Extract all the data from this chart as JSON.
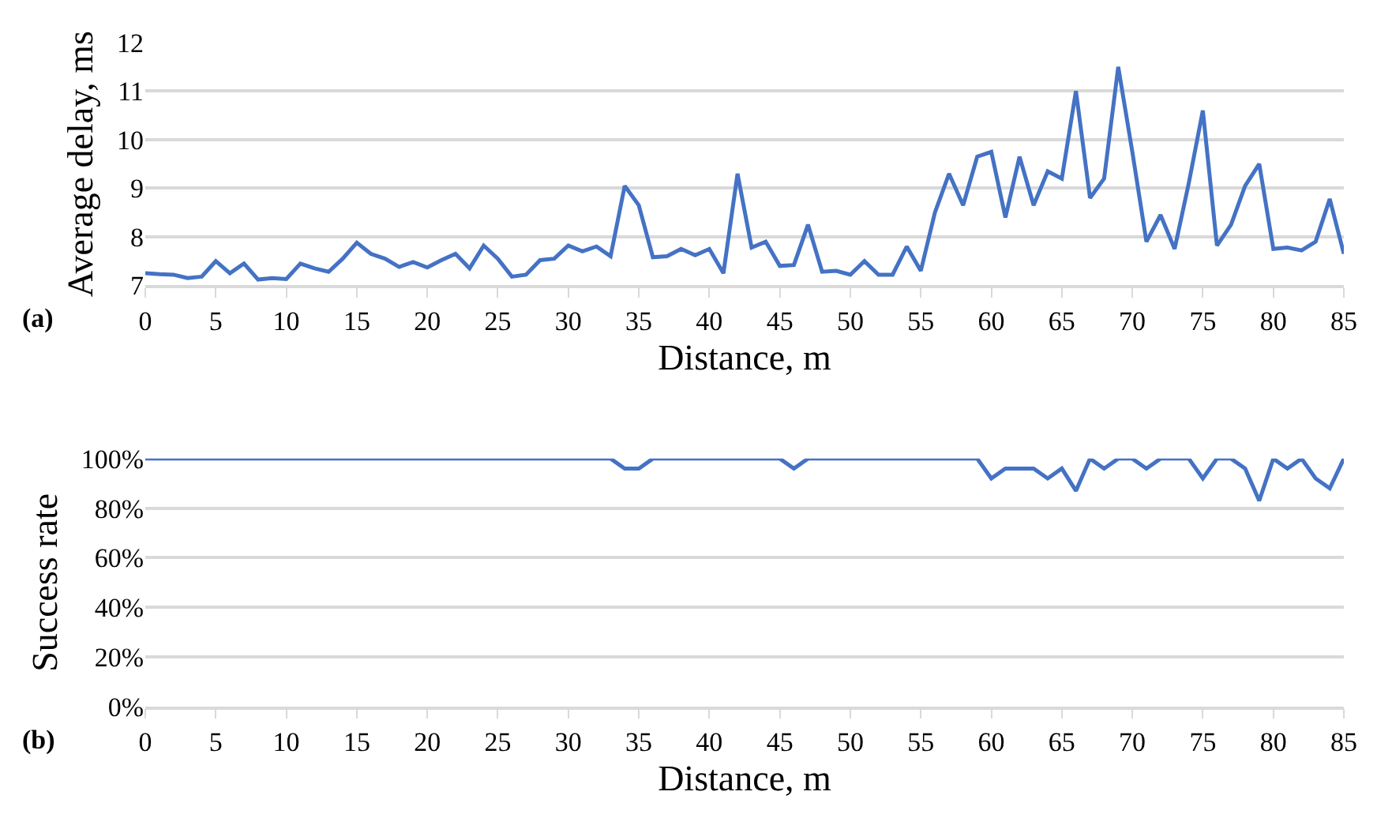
{
  "chart_data": [
    {
      "type": "line",
      "xlabel": "Distance, m",
      "ylabel": "Average delay, ms",
      "annotations": [
        "(a)"
      ],
      "grid": "y",
      "marker": "none",
      "line_style": "solid",
      "x": [
        0,
        1,
        2,
        3,
        4,
        5,
        6,
        7,
        8,
        9,
        10,
        11,
        12,
        13,
        14,
        15,
        16,
        17,
        18,
        19,
        20,
        21,
        22,
        23,
        24,
        25,
        26,
        27,
        28,
        29,
        30,
        31,
        32,
        33,
        34,
        35,
        36,
        37,
        38,
        39,
        40,
        41,
        42,
        43,
        44,
        45,
        46,
        47,
        48,
        49,
        50,
        51,
        52,
        53,
        54,
        55,
        56,
        57,
        58,
        59,
        60,
        61,
        62,
        63,
        64,
        65,
        66,
        67,
        68,
        69,
        70,
        71,
        72,
        73,
        74,
        75,
        76,
        77,
        78,
        79,
        80,
        81,
        82,
        83,
        84,
        85
      ],
      "series": [
        {
          "color": "#4472c4",
          "values": [
            7.25,
            7.23,
            7.22,
            7.15,
            7.18,
            7.5,
            7.25,
            7.45,
            7.12,
            7.15,
            7.13,
            7.45,
            7.35,
            7.28,
            7.55,
            7.88,
            7.65,
            7.55,
            7.38,
            7.48,
            7.37,
            7.52,
            7.65,
            7.35,
            7.82,
            7.55,
            7.18,
            7.22,
            7.52,
            7.55,
            7.82,
            7.7,
            7.8,
            7.6,
            9.05,
            8.65,
            7.58,
            7.6,
            7.75,
            7.62,
            7.75,
            7.25,
            9.3,
            7.78,
            7.9,
            7.4,
            7.42,
            8.25,
            7.28,
            7.3,
            7.22,
            7.5,
            7.22,
            7.22,
            7.8,
            7.3,
            8.5,
            9.3,
            8.65,
            9.65,
            9.75,
            8.4,
            9.65,
            8.65,
            9.35,
            9.2,
            11.0,
            8.8,
            9.2,
            11.5,
            9.75,
            7.9,
            8.45,
            7.75,
            9.1,
            10.6,
            7.82,
            8.25,
            9.05,
            9.5,
            7.75,
            7.78,
            7.72,
            7.9,
            8.78,
            7.65
          ]
        }
      ],
      "xlim": [
        0,
        85
      ],
      "xticks": [
        0,
        5,
        10,
        15,
        20,
        25,
        30,
        35,
        40,
        45,
        50,
        55,
        60,
        65,
        70,
        75,
        80,
        85
      ],
      "ylim": [
        7,
        12
      ],
      "yticks": [
        7,
        8,
        9,
        10,
        11,
        12
      ]
    },
    {
      "type": "line",
      "xlabel": "Distance, m",
      "ylabel": "Success rate",
      "annotations": [
        "(b)"
      ],
      "grid": "y",
      "marker": "none",
      "line_style": "solid",
      "x": [
        0,
        1,
        2,
        3,
        4,
        5,
        6,
        7,
        8,
        9,
        10,
        11,
        12,
        13,
        14,
        15,
        16,
        17,
        18,
        19,
        20,
        21,
        22,
        23,
        24,
        25,
        26,
        27,
        28,
        29,
        30,
        31,
        32,
        33,
        34,
        35,
        36,
        37,
        38,
        39,
        40,
        41,
        42,
        43,
        44,
        45,
        46,
        47,
        48,
        49,
        50,
        51,
        52,
        53,
        54,
        55,
        56,
        57,
        58,
        59,
        60,
        61,
        62,
        63,
        64,
        65,
        66,
        67,
        68,
        69,
        70,
        71,
        72,
        73,
        74,
        75,
        76,
        77,
        78,
        79,
        80,
        81,
        82,
        83,
        84,
        85
      ],
      "series": [
        {
          "color": "#4472c4",
          "values": [
            100,
            100,
            100,
            100,
            100,
            100,
            100,
            100,
            100,
            100,
            100,
            100,
            100,
            100,
            100,
            100,
            100,
            100,
            100,
            100,
            100,
            100,
            100,
            100,
            100,
            100,
            100,
            100,
            100,
            100,
            100,
            100,
            100,
            100,
            96,
            96,
            100,
            100,
            100,
            100,
            100,
            100,
            100,
            100,
            100,
            100,
            96,
            100,
            100,
            100,
            100,
            100,
            100,
            100,
            100,
            100,
            100,
            100,
            100,
            100,
            92,
            96,
            96,
            96,
            92,
            96,
            87,
            100,
            96,
            100,
            100,
            96,
            100,
            100,
            100,
            92,
            100,
            100,
            96,
            83,
            100,
            96,
            100,
            92,
            88,
            100
          ]
        }
      ],
      "xlim": [
        0,
        85
      ],
      "xticks": [
        0,
        5,
        10,
        15,
        20,
        25,
        30,
        35,
        40,
        45,
        50,
        55,
        60,
        65,
        70,
        75,
        80,
        85
      ],
      "ylim": [
        0,
        100
      ],
      "yticks": [
        {
          "value": 0,
          "label": "0%"
        },
        {
          "value": 20,
          "label": "20%"
        },
        {
          "value": 40,
          "label": "40%"
        },
        {
          "value": 60,
          "label": "60%"
        },
        {
          "value": 80,
          "label": "80%"
        },
        {
          "value": 100,
          "label": "100%"
        }
      ]
    }
  ]
}
